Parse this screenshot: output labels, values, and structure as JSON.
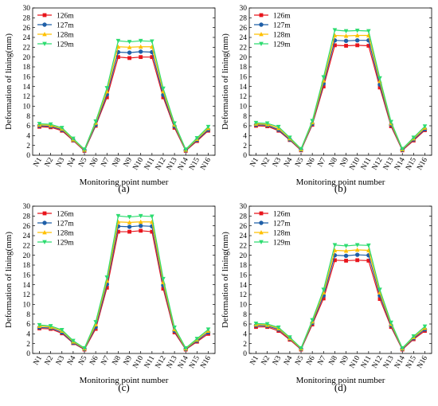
{
  "figure": {
    "panels": [
      "(a)",
      "(b)",
      "(c)",
      "(d)"
    ]
  },
  "chart_data": [
    {
      "type": "line",
      "panel_label": "(a)",
      "xlabel": "Monitoring point number",
      "ylabel": "Deformation of  lining(mm)",
      "categories": [
        "N1",
        "N2",
        "N3",
        "N4",
        "N5",
        "N6",
        "N7",
        "N8",
        "N9",
        "N10",
        "N11",
        "N12",
        "N13",
        "N14",
        "N15",
        "N16"
      ],
      "ylim": [
        0,
        30
      ],
      "yticks": [
        0,
        2,
        4,
        6,
        8,
        10,
        12,
        14,
        16,
        18,
        20,
        22,
        24,
        26,
        28,
        30
      ],
      "legend_position": "top-left",
      "series": [
        {
          "name": "126m",
          "color": "#e8141b",
          "marker": "square",
          "values": [
            5.8,
            5.7,
            5.0,
            3.0,
            0.9,
            6.0,
            11.8,
            20.0,
            19.8,
            20.0,
            20.0,
            11.8,
            5.6,
            0.9,
            2.9,
            5.0
          ]
        },
        {
          "name": "127m",
          "color": "#1f5fa8",
          "marker": "circle",
          "values": [
            6.0,
            5.9,
            5.2,
            3.1,
            1.0,
            6.2,
            12.4,
            21.0,
            20.9,
            21.1,
            21.0,
            12.3,
            5.9,
            1.0,
            3.1,
            5.2
          ]
        },
        {
          "name": "128m",
          "color": "#ffc000",
          "marker": "triangle",
          "values": [
            6.2,
            6.1,
            5.4,
            3.2,
            1.1,
            6.6,
            13.0,
            22.1,
            22.0,
            22.1,
            22.1,
            13.0,
            6.2,
            1.1,
            3.3,
            5.5
          ]
        },
        {
          "name": "129m",
          "color": "#2ddc70",
          "marker": "tri-down",
          "values": [
            6.4,
            6.3,
            5.6,
            3.4,
            1.2,
            6.9,
            13.7,
            23.3,
            23.1,
            23.3,
            23.2,
            13.6,
            6.5,
            1.2,
            3.5,
            5.8
          ]
        }
      ]
    },
    {
      "type": "line",
      "panel_label": "(b)",
      "xlabel": "Monitoring point number",
      "ylabel": "Deformation of  lining(mm)",
      "categories": [
        "N1",
        "N2",
        "N3",
        "N4",
        "N5",
        "N6",
        "N7",
        "N8",
        "N9",
        "N10",
        "N11",
        "N12",
        "N13",
        "N14",
        "N15",
        "N16"
      ],
      "ylim": [
        0,
        30
      ],
      "yticks": [
        0,
        2,
        4,
        6,
        8,
        10,
        12,
        14,
        16,
        18,
        20,
        22,
        24,
        26,
        28,
        30
      ],
      "legend_position": "top-left",
      "series": [
        {
          "name": "126m",
          "color": "#e8141b",
          "marker": "square",
          "values": [
            6.0,
            5.9,
            5.0,
            3.1,
            1.0,
            6.2,
            14.0,
            22.4,
            22.3,
            22.4,
            22.3,
            13.8,
            5.9,
            1.0,
            3.0,
            5.1
          ]
        },
        {
          "name": "127m",
          "color": "#1f5fa8",
          "marker": "circle",
          "values": [
            6.2,
            6.1,
            5.2,
            3.2,
            1.1,
            6.4,
            14.6,
            23.4,
            23.3,
            23.4,
            23.4,
            14.4,
            6.2,
            1.1,
            3.2,
            5.3
          ]
        },
        {
          "name": "128m",
          "color": "#ffc000",
          "marker": "triangle",
          "values": [
            6.4,
            6.3,
            5.5,
            3.4,
            1.2,
            6.7,
            15.2,
            24.4,
            24.3,
            24.4,
            24.4,
            15.1,
            6.5,
            1.2,
            3.4,
            5.6
          ]
        },
        {
          "name": "129m",
          "color": "#2ddc70",
          "marker": "tri-down",
          "values": [
            6.6,
            6.5,
            5.8,
            3.6,
            1.3,
            7.0,
            15.9,
            25.5,
            25.3,
            25.4,
            25.3,
            15.7,
            6.8,
            1.3,
            3.6,
            5.9
          ]
        }
      ]
    },
    {
      "type": "line",
      "panel_label": "(c)",
      "xlabel": "Monitoring point number",
      "ylabel": "Deformation of  lining(mm)",
      "categories": [
        "N1",
        "N2",
        "N3",
        "N4",
        "N5",
        "N6",
        "N7",
        "N8",
        "N9",
        "N10",
        "N11",
        "N12",
        "N13",
        "N14",
        "N15",
        "N16"
      ],
      "ylim": [
        0,
        30
      ],
      "yticks": [
        0,
        2,
        4,
        6,
        8,
        10,
        12,
        14,
        16,
        18,
        20,
        22,
        24,
        26,
        28,
        30
      ],
      "legend_position": "top-left",
      "series": [
        {
          "name": "126m",
          "color": "#e8141b",
          "marker": "square",
          "values": [
            5.1,
            5.0,
            4.1,
            2.1,
            0.8,
            5.0,
            13.4,
            24.8,
            24.8,
            25.0,
            24.8,
            13.2,
            4.3,
            0.8,
            2.4,
            4.0
          ]
        },
        {
          "name": "127m",
          "color": "#1f5fa8",
          "marker": "circle",
          "values": [
            5.3,
            5.2,
            4.3,
            2.2,
            0.9,
            5.4,
            14.1,
            25.9,
            25.8,
            26.0,
            25.9,
            13.9,
            4.6,
            0.9,
            2.6,
            4.3
          ]
        },
        {
          "name": "128m",
          "color": "#ffc000",
          "marker": "triangle",
          "values": [
            5.6,
            5.4,
            4.6,
            2.4,
            1.0,
            5.9,
            14.8,
            26.8,
            26.7,
            26.8,
            26.8,
            14.5,
            4.9,
            1.0,
            2.8,
            4.6
          ]
        },
        {
          "name": "129m",
          "color": "#2ddc70",
          "marker": "tri-down",
          "values": [
            5.8,
            5.6,
            4.8,
            2.6,
            1.1,
            6.4,
            15.5,
            28.0,
            27.8,
            28.0,
            27.9,
            15.2,
            5.3,
            1.1,
            3.0,
            4.9
          ]
        }
      ]
    },
    {
      "type": "line",
      "panel_label": "(d)",
      "xlabel": "Monitoring point number",
      "ylabel": "Deformation of  lining(mm)",
      "categories": [
        "N1",
        "N2",
        "N3",
        "N4",
        "N5",
        "N6",
        "N7",
        "N8",
        "N9",
        "N10",
        "N11",
        "N12",
        "N13",
        "N14",
        "N15",
        "N16"
      ],
      "ylim": [
        0,
        30
      ],
      "yticks": [
        0,
        2,
        4,
        6,
        8,
        10,
        12,
        14,
        16,
        18,
        20,
        22,
        24,
        26,
        28,
        30
      ],
      "legend_position": "top-left",
      "series": [
        {
          "name": "126m",
          "color": "#e8141b",
          "marker": "square",
          "values": [
            5.4,
            5.4,
            4.6,
            2.8,
            0.8,
            5.9,
            11.2,
            19.0,
            18.9,
            19.0,
            18.9,
            11.1,
            5.4,
            0.8,
            2.9,
            4.6
          ]
        },
        {
          "name": "127m",
          "color": "#1f5fa8",
          "marker": "circle",
          "values": [
            5.7,
            5.6,
            4.9,
            3.0,
            0.9,
            6.2,
            11.8,
            20.0,
            19.9,
            20.1,
            20.0,
            11.8,
            5.7,
            0.9,
            3.1,
            4.9
          ]
        },
        {
          "name": "128m",
          "color": "#ffc000",
          "marker": "triangle",
          "values": [
            5.9,
            5.8,
            5.1,
            3.1,
            1.0,
            6.5,
            12.4,
            21.0,
            20.9,
            21.1,
            21.0,
            12.4,
            6.0,
            1.0,
            3.3,
            5.2
          ]
        },
        {
          "name": "129m",
          "color": "#2ddc70",
          "marker": "tri-down",
          "values": [
            6.1,
            6.0,
            5.3,
            3.3,
            1.1,
            6.8,
            13.0,
            22.1,
            21.9,
            22.1,
            22.0,
            13.0,
            6.3,
            1.1,
            3.5,
            5.5
          ]
        }
      ]
    }
  ]
}
